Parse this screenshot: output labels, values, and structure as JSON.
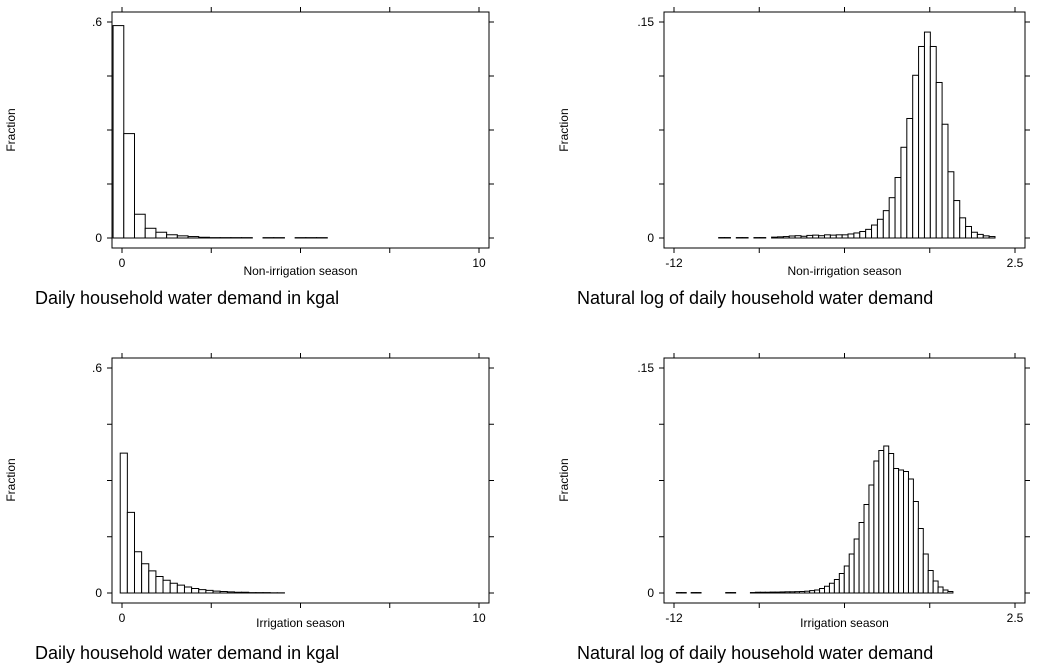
{
  "chart_data": [
    {
      "type": "bar",
      "title": "",
      "caption": "Daily household water demand in kgal",
      "xlabel": "Non-irrigation season",
      "ylabel": "Fraction",
      "xlim": [
        0,
        10
      ],
      "ylim": [
        0,
        0.6
      ],
      "xticklabels": [
        "0",
        "10"
      ],
      "yticklabels": [
        "0",
        ".6"
      ],
      "bin_start": -0.25,
      "bin_width": 0.3,
      "values": [
        0.59,
        0.29,
        0.066,
        0.027,
        0.016,
        0.009,
        0.006,
        0.004,
        0.002,
        0.001,
        0.001,
        0.001,
        0.001,
        0,
        0.001,
        0.001,
        0,
        0.001,
        0.001,
        0.001
      ],
      "grid": false
    },
    {
      "type": "bar",
      "title": "",
      "caption": "Natural log of daily household water demand",
      "xlabel": "Non-irrigation season",
      "ylabel": "Fraction",
      "xlim": [
        -12,
        2.5
      ],
      "ylim": [
        0,
        0.15
      ],
      "xticklabels": [
        "-12",
        "2.5"
      ],
      "yticklabels": [
        "0",
        ".15"
      ],
      "bin_start": -10.1,
      "bin_width": 0.25,
      "values": [
        0.0003,
        0.0003,
        0,
        0.0003,
        0.0003,
        0,
        0.0003,
        0.0003,
        0,
        0.0006,
        0.0008,
        0.001,
        0.0014,
        0.0016,
        0.0012,
        0.0018,
        0.002,
        0.0016,
        0.0022,
        0.002,
        0.0022,
        0.0022,
        0.0028,
        0.0035,
        0.0045,
        0.006,
        0.009,
        0.013,
        0.019,
        0.028,
        0.042,
        0.063,
        0.083,
        0.113,
        0.133,
        0.143,
        0.133,
        0.108,
        0.079,
        0.046,
        0.026,
        0.014,
        0.008,
        0.004,
        0.0025,
        0.0015,
        0.001
      ],
      "grid": false
    },
    {
      "type": "bar",
      "title": "",
      "caption": "Daily household water demand in kgal",
      "xlabel": "Irrigation season",
      "ylabel": "Fraction",
      "xlim": [
        0,
        10
      ],
      "ylim": [
        0,
        0.6
      ],
      "xticklabels": [
        "0",
        "10"
      ],
      "yticklabels": [
        "0",
        ".6"
      ],
      "bin_start": -0.05,
      "bin_width": 0.2,
      "values": [
        0.373,
        0.215,
        0.11,
        0.078,
        0.059,
        0.044,
        0.034,
        0.026,
        0.021,
        0.016,
        0.012,
        0.009,
        0.007,
        0.005,
        0.004,
        0.003,
        0.002,
        0.002,
        0.001,
        0.001,
        0.001,
        0.0005,
        0.0005
      ],
      "grid": false
    },
    {
      "type": "bar",
      "title": "",
      "caption": "Natural log of daily household water demand",
      "xlabel": "Irrigation season",
      "ylabel": "Fraction",
      "xlim": [
        -12,
        2.5
      ],
      "ylim": [
        0,
        0.15
      ],
      "xticklabels": [
        "-12",
        "2.5"
      ],
      "yticklabels": [
        "0",
        ".15"
      ],
      "bin_start": -11.9,
      "bin_width": 0.21,
      "values": [
        0.0003,
        0.0003,
        0,
        0.0003,
        0.0003,
        0,
        0,
        0,
        0,
        0,
        0.0003,
        0.0003,
        0,
        0,
        0,
        0.0003,
        0.0005,
        0.0005,
        0.0005,
        0.0006,
        0.0006,
        0.0007,
        0.0008,
        0.0008,
        0.0009,
        0.001,
        0.0012,
        0.0016,
        0.002,
        0.003,
        0.0045,
        0.0065,
        0.009,
        0.013,
        0.018,
        0.026,
        0.036,
        0.047,
        0.059,
        0.072,
        0.088,
        0.095,
        0.098,
        0.093,
        0.083,
        0.082,
        0.081,
        0.076,
        0.061,
        0.043,
        0.026,
        0.015,
        0.008,
        0.004,
        0.002,
        0.001
      ],
      "grid": false
    }
  ]
}
